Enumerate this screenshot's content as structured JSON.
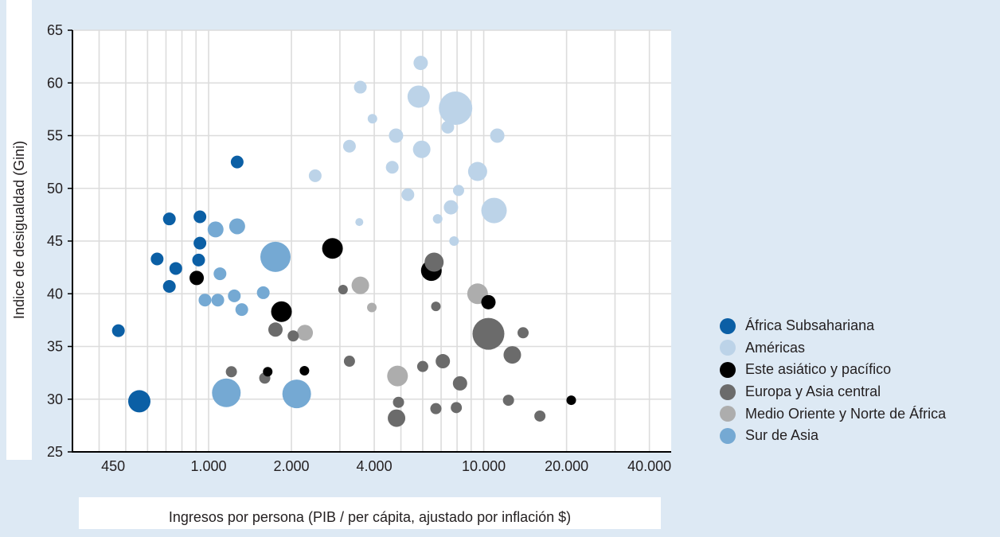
{
  "chart_data": {
    "type": "scatter",
    "xlabel": "Ingresos por persona (PIB / per cápita, ajustado por inflación $)",
    "ylabel": "Indice de desigualdad (Gini)",
    "xscale": "log",
    "xlim": [
      320,
      48000
    ],
    "ylim": [
      25,
      65
    ],
    "xticks": [
      450,
      1000,
      2000,
      4000,
      10000,
      20000,
      40000
    ],
    "xtick_labels": [
      "450",
      "1.000",
      "2.000",
      "4.000",
      "10.000",
      "20.000",
      "40.000"
    ],
    "yticks": [
      25,
      30,
      35,
      40,
      45,
      50,
      55,
      60,
      65
    ],
    "ytick_labels": [
      "25",
      "30",
      "35",
      "40",
      "45",
      "50",
      "55",
      "60",
      "65"
    ],
    "grid": true,
    "legend_position": "right",
    "series": [
      {
        "name": "África Subsahariana",
        "color": "#0b5fa5",
        "points": [
          {
            "x": 470,
            "y": 36.5,
            "size": 8
          },
          {
            "x": 650,
            "y": 43.3,
            "size": 8
          },
          {
            "x": 720,
            "y": 47.1,
            "size": 8
          },
          {
            "x": 720,
            "y": 40.7,
            "size": 8
          },
          {
            "x": 760,
            "y": 42.4,
            "size": 8
          },
          {
            "x": 930,
            "y": 47.3,
            "size": 8
          },
          {
            "x": 930,
            "y": 44.8,
            "size": 8
          },
          {
            "x": 920,
            "y": 43.2,
            "size": 8
          },
          {
            "x": 1270,
            "y": 52.5,
            "size": 8
          },
          {
            "x": 560,
            "y": 29.8,
            "size": 14
          }
        ]
      },
      {
        "name": "Américas",
        "color": "#bcd3e8",
        "points": [
          {
            "x": 5900,
            "y": 61.9,
            "size": 9
          },
          {
            "x": 3560,
            "y": 59.6,
            "size": 8
          },
          {
            "x": 5800,
            "y": 58.7,
            "size": 14
          },
          {
            "x": 7900,
            "y": 57.6,
            "size": 21
          },
          {
            "x": 3940,
            "y": 56.6,
            "size": 6
          },
          {
            "x": 7400,
            "y": 55.8,
            "size": 8
          },
          {
            "x": 4800,
            "y": 55.0,
            "size": 9
          },
          {
            "x": 11200,
            "y": 55.0,
            "size": 9
          },
          {
            "x": 3250,
            "y": 54.0,
            "size": 8
          },
          {
            "x": 5950,
            "y": 53.7,
            "size": 11
          },
          {
            "x": 4650,
            "y": 52.0,
            "size": 8
          },
          {
            "x": 9500,
            "y": 51.6,
            "size": 12
          },
          {
            "x": 2440,
            "y": 51.2,
            "size": 8
          },
          {
            "x": 5300,
            "y": 49.4,
            "size": 8
          },
          {
            "x": 8100,
            "y": 49.8,
            "size": 7
          },
          {
            "x": 7600,
            "y": 48.2,
            "size": 9
          },
          {
            "x": 10900,
            "y": 47.9,
            "size": 16
          },
          {
            "x": 6800,
            "y": 47.1,
            "size": 6
          },
          {
            "x": 3530,
            "y": 46.8,
            "size": 5
          },
          {
            "x": 7800,
            "y": 45.0,
            "size": 6
          }
        ]
      },
      {
        "name": "Este asiático y pacífico",
        "color": "#000000",
        "points": [
          {
            "x": 2820,
            "y": 44.3,
            "size": 13
          },
          {
            "x": 6450,
            "y": 42.2,
            "size": 13
          },
          {
            "x": 905,
            "y": 41.5,
            "size": 9
          },
          {
            "x": 1840,
            "y": 38.3,
            "size": 13
          },
          {
            "x": 10400,
            "y": 39.2,
            "size": 9
          },
          {
            "x": 1640,
            "y": 32.6,
            "size": 6
          },
          {
            "x": 2230,
            "y": 32.7,
            "size": 6
          },
          {
            "x": 20800,
            "y": 29.9,
            "size": 6
          }
        ]
      },
      {
        "name": "Europa y Asia central",
        "color": "#6b6b6b",
        "points": [
          {
            "x": 6600,
            "y": 43.0,
            "size": 12
          },
          {
            "x": 3080,
            "y": 40.4,
            "size": 6
          },
          {
            "x": 6700,
            "y": 38.8,
            "size": 6
          },
          {
            "x": 1750,
            "y": 36.6,
            "size": 9
          },
          {
            "x": 2030,
            "y": 36.0,
            "size": 7
          },
          {
            "x": 10400,
            "y": 36.2,
            "size": 20
          },
          {
            "x": 13900,
            "y": 36.3,
            "size": 7
          },
          {
            "x": 12700,
            "y": 34.2,
            "size": 11
          },
          {
            "x": 3250,
            "y": 33.6,
            "size": 7
          },
          {
            "x": 7100,
            "y": 33.6,
            "size": 9
          },
          {
            "x": 6000,
            "y": 33.1,
            "size": 7
          },
          {
            "x": 1210,
            "y": 32.6,
            "size": 7
          },
          {
            "x": 1600,
            "y": 32.0,
            "size": 7
          },
          {
            "x": 8200,
            "y": 31.5,
            "size": 9
          },
          {
            "x": 12300,
            "y": 29.9,
            "size": 7
          },
          {
            "x": 4900,
            "y": 29.7,
            "size": 7
          },
          {
            "x": 6700,
            "y": 29.1,
            "size": 7
          },
          {
            "x": 7950,
            "y": 29.2,
            "size": 7
          },
          {
            "x": 16000,
            "y": 28.4,
            "size": 7
          },
          {
            "x": 4820,
            "y": 28.2,
            "size": 11
          }
        ]
      },
      {
        "name": "Medio Oriente y Norte de África",
        "color": "#adadad",
        "points": [
          {
            "x": 3560,
            "y": 40.8,
            "size": 11
          },
          {
            "x": 3920,
            "y": 38.7,
            "size": 6
          },
          {
            "x": 9500,
            "y": 40.0,
            "size": 13
          },
          {
            "x": 2240,
            "y": 36.3,
            "size": 10
          },
          {
            "x": 4860,
            "y": 32.2,
            "size": 13
          }
        ]
      },
      {
        "name": "Sur de Asia",
        "color": "#75a9d3",
        "points": [
          {
            "x": 1750,
            "y": 43.5,
            "size": 19
          },
          {
            "x": 1270,
            "y": 46.4,
            "size": 10
          },
          {
            "x": 1060,
            "y": 46.1,
            "size": 10
          },
          {
            "x": 1100,
            "y": 41.9,
            "size": 8
          },
          {
            "x": 1580,
            "y": 40.1,
            "size": 8
          },
          {
            "x": 1240,
            "y": 39.8,
            "size": 8
          },
          {
            "x": 970,
            "y": 39.4,
            "size": 8
          },
          {
            "x": 1080,
            "y": 39.4,
            "size": 8
          },
          {
            "x": 1320,
            "y": 38.5,
            "size": 8
          },
          {
            "x": 1160,
            "y": 30.6,
            "size": 18
          },
          {
            "x": 2090,
            "y": 30.5,
            "size": 18
          }
        ]
      }
    ]
  }
}
